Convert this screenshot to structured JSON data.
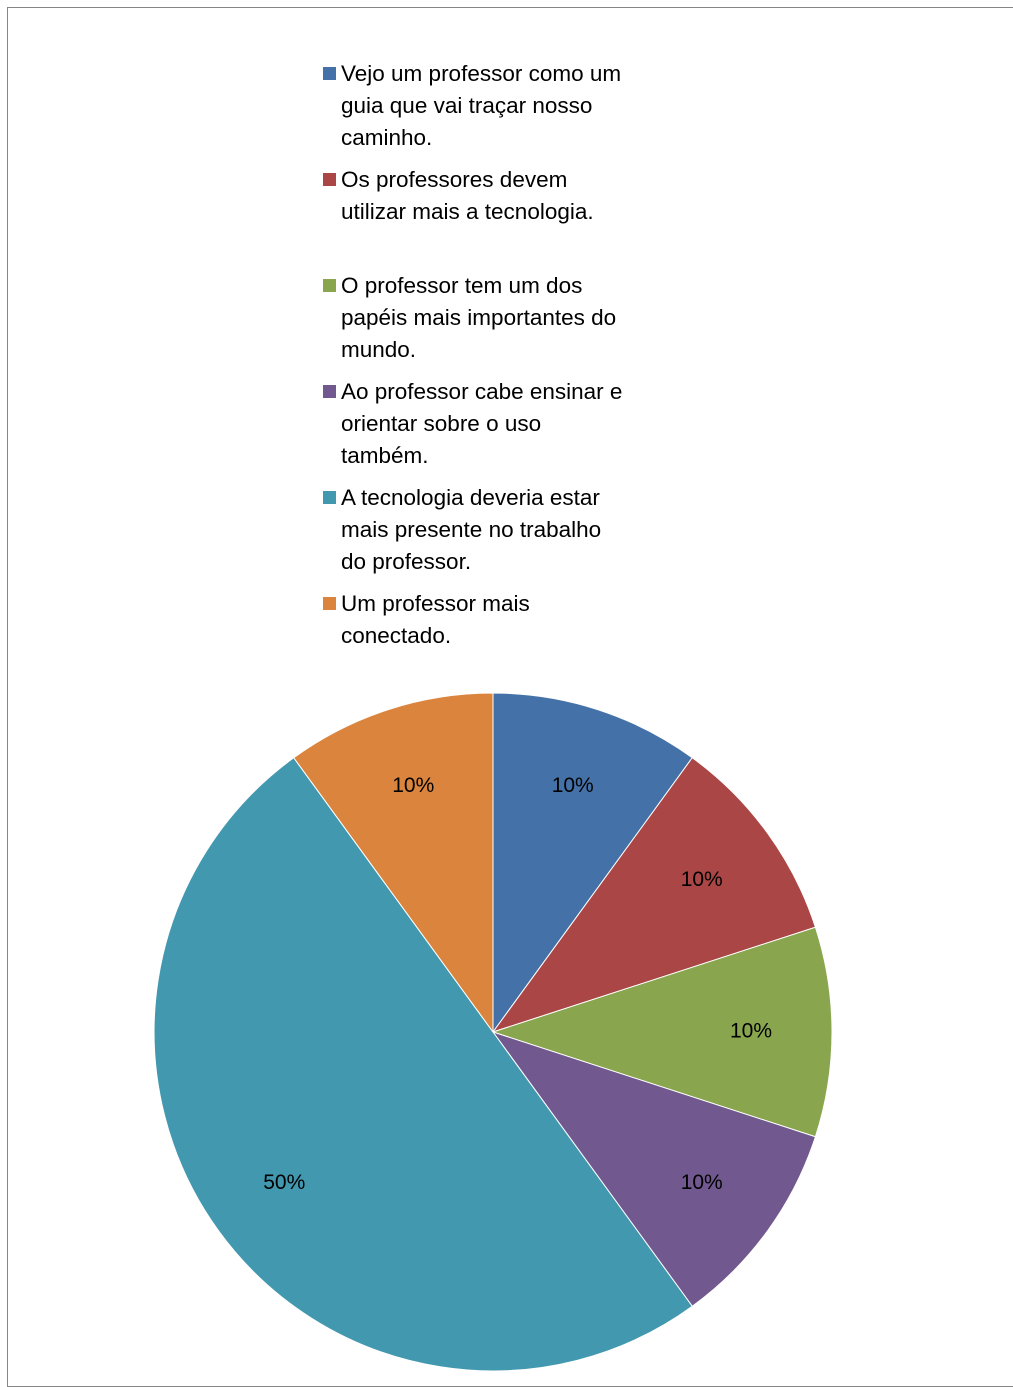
{
  "chart_data": {
    "type": "pie",
    "title": "",
    "legend_position": "top",
    "categories": [
      "Vejo um professor como um guia que vai traçar nosso caminho.",
      "Os professores devem utilizar mais a tecnologia.",
      "O professor tem um dos papéis mais importantes do mundo.",
      "Ao professor cabe ensinar e orientar sobre o uso também.",
      "A tecnologia deveria estar mais presente no trabalho do professor.",
      "Um professor mais conectado."
    ],
    "values": [
      10,
      10,
      10,
      10,
      50,
      10
    ],
    "labels": [
      "10%",
      "10%",
      "10%",
      "10%",
      "50%",
      "10%"
    ],
    "colors": [
      "#4472a8",
      "#aa4645",
      "#89a54e",
      "#71588f",
      "#4198af",
      "#db843d"
    ]
  },
  "legend": {
    "items": [
      {
        "lines": [
          "Vejo um professor como um",
          "guia que vai traçar nosso",
          "caminho."
        ]
      },
      {
        "lines": [
          "Os professores devem",
          "utilizar mais a tecnologia."
        ]
      },
      {
        "lines": [
          "O professor tem um dos",
          "papéis mais importantes do",
          "mundo."
        ]
      },
      {
        "lines": [
          "Ao professor cabe ensinar e",
          "orientar sobre o uso",
          "também."
        ]
      },
      {
        "lines": [
          "A tecnologia deveria estar",
          "mais presente no trabalho",
          "do professor."
        ]
      },
      {
        "lines": [
          "Um professor mais",
          "conectado."
        ]
      }
    ]
  }
}
